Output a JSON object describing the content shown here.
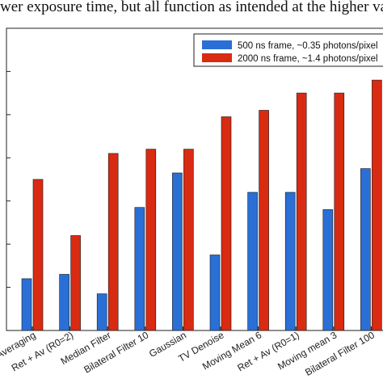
{
  "caption_text": "wer exposure time, but all function as intended at the higher value.",
  "chart_data": {
    "type": "bar",
    "categories": [
      "Averaging",
      "Ret + Av (R0=2)",
      "Median Filter",
      "Bilateral Filter 10",
      "Gaussian",
      "TV Denoise",
      "Moving Mean 6",
      "Ret + Av (R0=1)",
      "Moving mean 3",
      "Bilateral Filter 100"
    ],
    "series": [
      {
        "name": "500 ns frame, ~0.35 photons/pixel",
        "color": "#2a6fd6",
        "values": [
          1.2,
          1.3,
          0.85,
          2.85,
          3.65,
          1.75,
          3.2,
          3.2,
          2.8,
          3.75
        ]
      },
      {
        "name": "2000 ns frame, ~1.4 photons/pixel",
        "color": "#d92a12",
        "values": [
          3.5,
          2.2,
          4.1,
          4.2,
          4.2,
          4.95,
          5.1,
          5.5,
          5.5,
          5.8
        ]
      }
    ],
    "ylim": [
      0,
      7
    ],
    "ytick_count": 7,
    "grid": false,
    "legend_position": "top-right"
  }
}
